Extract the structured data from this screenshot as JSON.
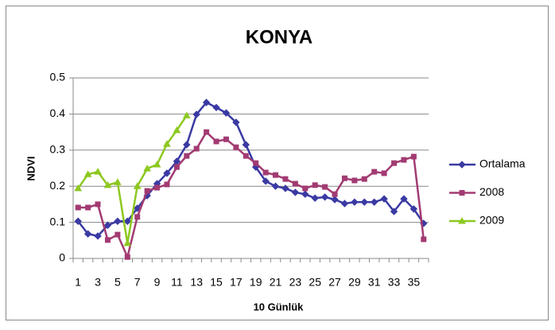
{
  "chart_data": {
    "type": "line",
    "title": "KONYA",
    "x_label": "10 Günlük",
    "y_label": "NDVI",
    "categories": [
      "1",
      null,
      "3",
      null,
      "5",
      null,
      "7",
      null,
      "9",
      null,
      "11",
      null,
      "13",
      null,
      "15",
      null,
      "17",
      null,
      "19",
      null,
      "21",
      null,
      "23",
      null,
      "25",
      null,
      "27",
      null,
      "29",
      null,
      "31",
      null,
      "33",
      null,
      "35",
      null
    ],
    "ylim": [
      0,
      0.5
    ],
    "yticks": [
      0,
      0.1,
      0.2,
      0.3,
      0.4,
      0.5
    ],
    "grid": true,
    "legend": "right",
    "series": [
      {
        "name": "Ortalama",
        "color": "#3a3aa3",
        "marker": "diamond",
        "values": [
          0.103,
          0.068,
          0.062,
          0.092,
          0.103,
          0.103,
          0.139,
          0.174,
          0.207,
          0.236,
          0.269,
          0.315,
          0.399,
          0.432,
          0.418,
          0.403,
          0.377,
          0.315,
          0.253,
          0.214,
          0.2,
          0.194,
          0.183,
          0.178,
          0.167,
          0.17,
          0.163,
          0.152,
          0.156,
          0.156,
          0.156,
          0.165,
          0.13,
          0.165,
          0.137,
          0.097
        ]
      },
      {
        "name": "2008",
        "color": "#a23b72",
        "marker": "square",
        "values": [
          0.141,
          0.141,
          0.15,
          0.051,
          0.066,
          0.004,
          0.115,
          0.187,
          0.196,
          0.205,
          0.253,
          0.284,
          0.304,
          0.35,
          0.324,
          0.33,
          0.308,
          0.284,
          0.264,
          0.238,
          0.231,
          0.22,
          0.207,
          0.194,
          0.203,
          0.198,
          0.178,
          0.222,
          0.216,
          0.22,
          0.24,
          0.236,
          0.264,
          0.273,
          0.282,
          0.053
        ]
      },
      {
        "name": "2009",
        "color": "#8dc820",
        "marker": "triangle",
        "values": [
          0.194,
          0.233,
          0.24,
          0.203,
          0.211,
          0.042,
          0.2,
          0.249,
          0.26,
          0.317,
          0.355,
          0.396,
          null,
          null,
          null,
          null,
          null,
          null,
          null,
          null,
          null,
          null,
          null,
          null,
          null,
          null,
          null,
          null,
          null,
          null,
          null,
          null,
          null,
          null,
          null,
          null
        ]
      }
    ]
  }
}
